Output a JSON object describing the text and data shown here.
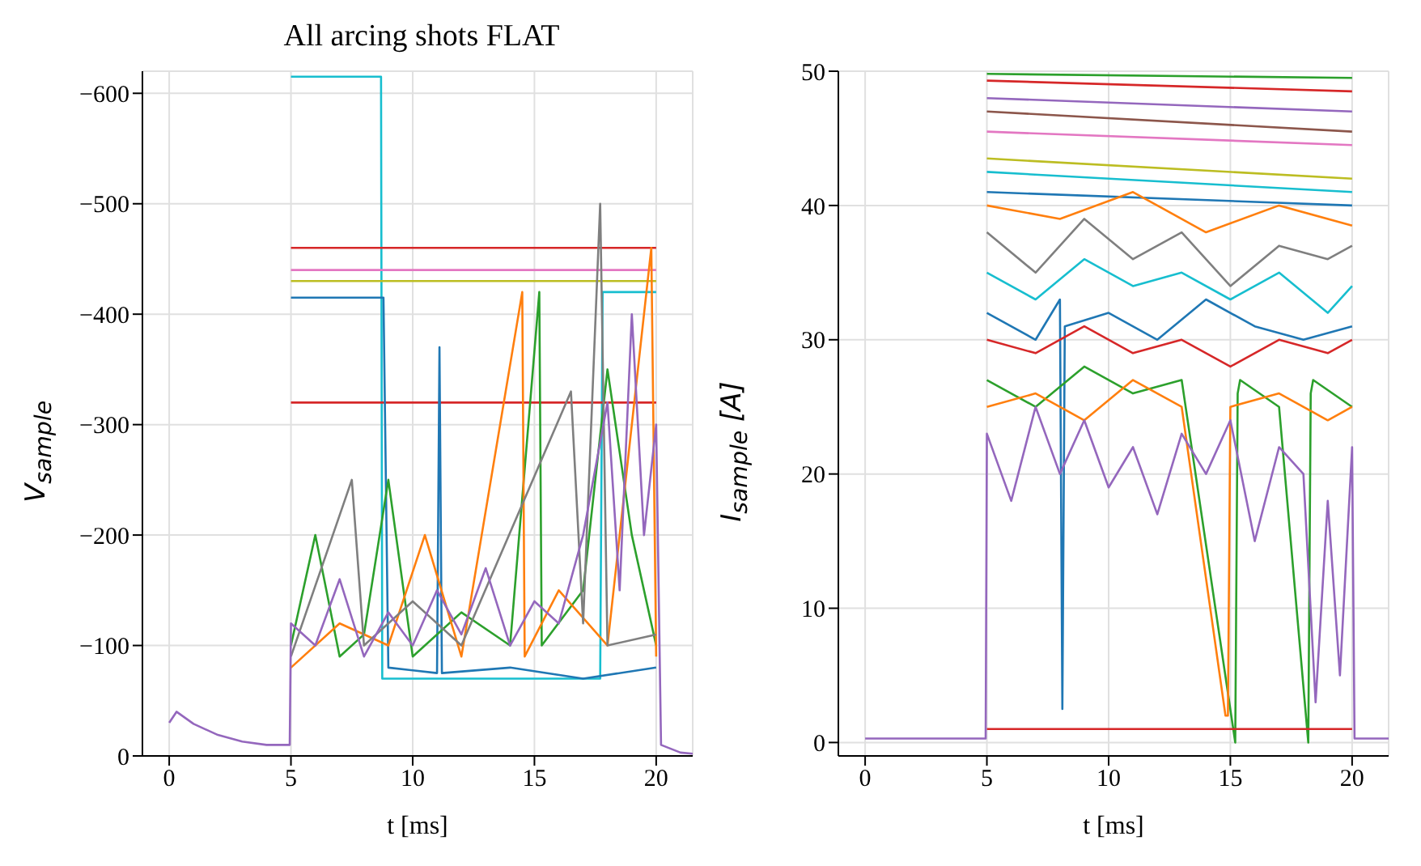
{
  "chart_data": [
    {
      "type": "line",
      "title": "All arcing shots FLAT",
      "xlabel": "t [ms]",
      "ylabel": "V$_{sample}$",
      "xlim": [
        -1.1,
        21.5
      ],
      "xticks": [
        0,
        5,
        10,
        15,
        20
      ],
      "ylim": [
        0,
        -620
      ],
      "yticks": [
        0,
        -100,
        -200,
        -300,
        -400,
        -500,
        -600
      ],
      "grid": true,
      "series": [
        {
          "color": "#17becf",
          "x": [
            5,
            8.7,
            8.75,
            12,
            17.7,
            17.8,
            20
          ],
          "values": [
            -615,
            -615,
            -70,
            -70,
            -70,
            -420,
            -420
          ]
        },
        {
          "color": "#d62728",
          "x": [
            5,
            20
          ],
          "values": [
            -460,
            -460
          ]
        },
        {
          "color": "#e377c2",
          "x": [
            5,
            20
          ],
          "values": [
            -440,
            -440
          ]
        },
        {
          "color": "#bcbd22",
          "x": [
            5,
            20
          ],
          "values": [
            -430,
            -430
          ]
        },
        {
          "color": "#d62728",
          "x": [
            5,
            20
          ],
          "values": [
            -320,
            -320
          ]
        },
        {
          "color": "#1f77b4",
          "x": [
            5,
            8.8,
            9,
            11,
            11.1,
            11.2,
            14,
            17,
            20
          ],
          "values": [
            -415,
            -415,
            -80,
            -75,
            -370,
            -75,
            -80,
            -70,
            -80
          ]
        },
        {
          "color": "#2ca02c",
          "x": [
            5,
            6,
            7,
            8,
            9,
            10,
            12,
            14,
            15.2,
            15.3,
            17,
            18,
            19,
            20
          ],
          "values": [
            -100,
            -200,
            -90,
            -110,
            -250,
            -90,
            -130,
            -100,
            -420,
            -100,
            -150,
            -350,
            -200,
            -100
          ]
        },
        {
          "color": "#ff7f0e",
          "x": [
            5,
            7,
            9,
            10.5,
            12,
            14.5,
            14.6,
            16,
            18,
            19.8,
            20
          ],
          "values": [
            -80,
            -120,
            -100,
            -200,
            -90,
            -420,
            -90,
            -150,
            -100,
            -460,
            -90
          ]
        },
        {
          "color": "#7f7f7f",
          "x": [
            5,
            7.5,
            8,
            10,
            12,
            16.5,
            17,
            17.7,
            18,
            20
          ],
          "values": [
            -90,
            -250,
            -100,
            -140,
            -100,
            -330,
            -120,
            -500,
            -100,
            -110
          ]
        },
        {
          "color": "#9467bd",
          "x": [
            0,
            0.3,
            1,
            2,
            3,
            4,
            4.95,
            5,
            6,
            7,
            8,
            9,
            10,
            11,
            12,
            13,
            14,
            15,
            16,
            17,
            18,
            18.5,
            19,
            19.5,
            20,
            20.2,
            21,
            21.5
          ],
          "values": [
            -30,
            -40,
            -29,
            -19,
            -13,
            -10,
            -10,
            -120,
            -100,
            -160,
            -90,
            -130,
            -100,
            -150,
            -110,
            -170,
            -100,
            -140,
            -120,
            -200,
            -320,
            -150,
            -400,
            -200,
            -300,
            -10,
            -3,
            -2
          ]
        }
      ]
    },
    {
      "type": "line",
      "xlabel": "t [ms]",
      "ylabel": "I$_{sample}$ [A]",
      "xlim": [
        -1.1,
        21.5
      ],
      "xticks": [
        0,
        5,
        10,
        15,
        20
      ],
      "ylim": [
        -1,
        50
      ],
      "yticks": [
        0,
        10,
        20,
        30,
        40,
        50
      ],
      "grid": true,
      "series": [
        {
          "color": "#2ca02c",
          "x": [
            5,
            20
          ],
          "values": [
            49.8,
            49.5
          ]
        },
        {
          "color": "#d62728",
          "x": [
            5,
            20
          ],
          "values": [
            49.3,
            48.5
          ]
        },
        {
          "color": "#9467bd",
          "x": [
            5,
            20
          ],
          "values": [
            48,
            47
          ]
        },
        {
          "color": "#8c564b",
          "x": [
            5,
            20
          ],
          "values": [
            47,
            45.5
          ]
        },
        {
          "color": "#e377c2",
          "x": [
            5,
            20
          ],
          "values": [
            45.5,
            44.5
          ]
        },
        {
          "color": "#bcbd22",
          "x": [
            5,
            20
          ],
          "values": [
            43.5,
            42
          ]
        },
        {
          "color": "#17becf",
          "x": [
            5,
            20
          ],
          "values": [
            42.5,
            41
          ]
        },
        {
          "color": "#1f77b4",
          "x": [
            5,
            20
          ],
          "values": [
            41,
            40
          ]
        },
        {
          "color": "#ff7f0e",
          "x": [
            5,
            8,
            11,
            14,
            17,
            20
          ],
          "values": [
            40,
            39,
            41,
            38,
            40,
            38.5
          ]
        },
        {
          "color": "#7f7f7f",
          "x": [
            5,
            7,
            9,
            11,
            13,
            15,
            17,
            19,
            20
          ],
          "values": [
            38,
            35,
            39,
            36,
            38,
            34,
            37,
            36,
            37
          ]
        },
        {
          "color": "#17becf",
          "x": [
            5,
            7,
            9,
            11,
            13,
            15,
            17,
            19,
            20
          ],
          "values": [
            35,
            33,
            36,
            34,
            35,
            33,
            35,
            32,
            34
          ]
        },
        {
          "color": "#1f77b4",
          "x": [
            5,
            7,
            8,
            8.1,
            8.2,
            10,
            12,
            14,
            16,
            18,
            20
          ],
          "values": [
            32,
            30,
            33,
            2.5,
            31,
            32,
            30,
            33,
            31,
            30,
            31
          ]
        },
        {
          "color": "#d62728",
          "x": [
            5,
            7,
            9,
            11,
            13,
            15,
            17,
            19,
            20
          ],
          "values": [
            30,
            29,
            31,
            29,
            30,
            28,
            30,
            29,
            30
          ]
        },
        {
          "color": "#2ca02c",
          "x": [
            5,
            7,
            9,
            11,
            13,
            15.2,
            15.3,
            15.4,
            17,
            18.2,
            18.3,
            18.4,
            20
          ],
          "values": [
            27,
            25,
            28,
            26,
            27,
            0,
            26,
            27,
            25,
            0,
            26,
            27,
            25
          ]
        },
        {
          "color": "#ff7f0e",
          "x": [
            5,
            7,
            9,
            11,
            13,
            14.8,
            14.9,
            15,
            17,
            19,
            20
          ],
          "values": [
            25,
            26,
            24,
            27,
            25,
            2,
            2,
            25,
            26,
            24,
            25
          ]
        },
        {
          "color": "#d62728",
          "x": [
            5,
            20
          ],
          "values": [
            1,
            1
          ]
        },
        {
          "color": "#9467bd",
          "x": [
            0,
            4.95,
            5,
            6,
            7,
            8,
            9,
            10,
            11,
            12,
            13,
            14,
            15,
            16,
            17,
            18,
            18.5,
            19,
            19.5,
            20,
            20.1,
            21.5
          ],
          "values": [
            0.3,
            0.3,
            23,
            18,
            25,
            20,
            24,
            19,
            22,
            17,
            23,
            20,
            24,
            15,
            22,
            20,
            3,
            18,
            5,
            22,
            0.3,
            0.3
          ]
        }
      ]
    }
  ]
}
